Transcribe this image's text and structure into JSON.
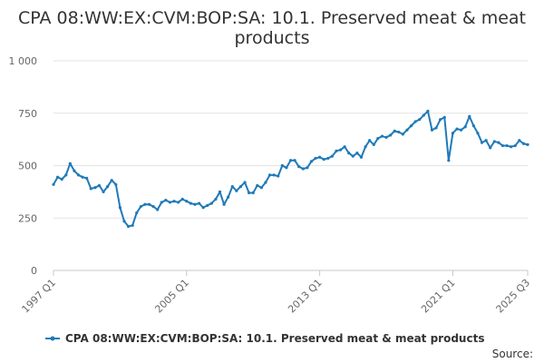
{
  "chart_data": {
    "type": "line",
    "title": "CPA 08:WW:EX:CVM:BOP:SA: 10.1. Preserved meat & meat products",
    "title_lines": [
      "CPA 08:WW:EX:CVM:BOP:SA: 10.1. Preserved meat & meat",
      "products"
    ],
    "xlabel": "",
    "ylabel": "",
    "ylim": [
      0,
      1000
    ],
    "y_ticks": [
      0,
      250,
      500,
      750,
      1000
    ],
    "y_tick_labels": [
      "0",
      "250",
      "500",
      "750",
      "1 000"
    ],
    "x_ticks": [
      "1997 Q1",
      "2005 Q1",
      "2013 Q1",
      "2021 Q1",
      "2025 Q3"
    ],
    "grid": "horizontal",
    "legend_position": "bottom",
    "series": [
      {
        "name": "CPA 08:WW:EX:CVM:BOP:SA: 10.1. Preserved meat & meat products",
        "color": "#1f7ab8",
        "x": [
          "1997 Q1",
          "1997 Q2",
          "1997 Q3",
          "1997 Q4",
          "1998 Q1",
          "1998 Q2",
          "1998 Q3",
          "1998 Q4",
          "1999 Q1",
          "1999 Q2",
          "1999 Q3",
          "1999 Q4",
          "2000 Q1",
          "2000 Q2",
          "2000 Q3",
          "2000 Q4",
          "2001 Q1",
          "2001 Q2",
          "2001 Q3",
          "2001 Q4",
          "2002 Q1",
          "2002 Q2",
          "2002 Q3",
          "2002 Q4",
          "2003 Q1",
          "2003 Q2",
          "2003 Q3",
          "2003 Q4",
          "2004 Q1",
          "2004 Q2",
          "2004 Q3",
          "2004 Q4",
          "2005 Q1",
          "2005 Q2",
          "2005 Q3",
          "2005 Q4",
          "2006 Q1",
          "2006 Q2",
          "2006 Q3",
          "2006 Q4",
          "2007 Q1",
          "2007 Q2",
          "2007 Q3",
          "2007 Q4",
          "2008 Q1",
          "2008 Q2",
          "2008 Q3",
          "2008 Q4",
          "2009 Q1",
          "2009 Q2",
          "2009 Q3",
          "2009 Q4",
          "2010 Q1",
          "2010 Q2",
          "2010 Q3",
          "2010 Q4",
          "2011 Q1",
          "2011 Q2",
          "2011 Q3",
          "2011 Q4",
          "2012 Q1",
          "2012 Q2",
          "2012 Q3",
          "2012 Q4",
          "2013 Q1",
          "2013 Q2",
          "2013 Q3",
          "2013 Q4",
          "2014 Q1",
          "2014 Q2",
          "2014 Q3",
          "2014 Q4",
          "2015 Q1",
          "2015 Q2",
          "2015 Q3",
          "2015 Q4",
          "2016 Q1",
          "2016 Q2",
          "2016 Q3",
          "2016 Q4",
          "2017 Q1",
          "2017 Q2",
          "2017 Q3",
          "2017 Q4",
          "2018 Q1",
          "2018 Q2",
          "2018 Q3",
          "2018 Q4",
          "2019 Q1",
          "2019 Q2",
          "2019 Q3",
          "2019 Q4",
          "2020 Q1",
          "2020 Q2",
          "2020 Q3",
          "2020 Q4",
          "2021 Q1",
          "2021 Q2",
          "2021 Q3",
          "2021 Q4",
          "2022 Q1",
          "2022 Q2",
          "2022 Q3",
          "2022 Q4",
          "2023 Q1",
          "2023 Q2",
          "2023 Q3",
          "2023 Q4",
          "2024 Q1",
          "2024 Q2",
          "2024 Q3",
          "2024 Q4",
          "2025 Q1",
          "2025 Q2",
          "2025 Q3"
        ],
        "values": [
          410,
          445,
          435,
          455,
          510,
          475,
          455,
          445,
          440,
          390,
          395,
          405,
          375,
          400,
          430,
          410,
          300,
          235,
          210,
          215,
          275,
          305,
          315,
          315,
          305,
          290,
          325,
          335,
          325,
          330,
          325,
          340,
          330,
          320,
          315,
          320,
          300,
          310,
          320,
          340,
          375,
          315,
          350,
          400,
          380,
          400,
          420,
          370,
          370,
          405,
          395,
          420,
          455,
          455,
          450,
          500,
          490,
          525,
          525,
          495,
          485,
          490,
          520,
          535,
          540,
          530,
          535,
          545,
          570,
          575,
          590,
          560,
          545,
          560,
          540,
          590,
          620,
          600,
          630,
          640,
          635,
          645,
          665,
          660,
          650,
          670,
          690,
          710,
          720,
          740,
          760,
          670,
          680,
          720,
          730,
          525,
          655,
          675,
          670,
          685,
          735,
          690,
          655,
          610,
          620,
          585,
          615,
          610,
          595,
          595,
          590,
          595,
          620,
          605,
          600
        ]
      }
    ]
  },
  "legend": {
    "label": "CPA 08:WW:EX:CVM:BOP:SA: 10.1. Preserved meat & meat products"
  },
  "source": {
    "label": "Source:"
  }
}
